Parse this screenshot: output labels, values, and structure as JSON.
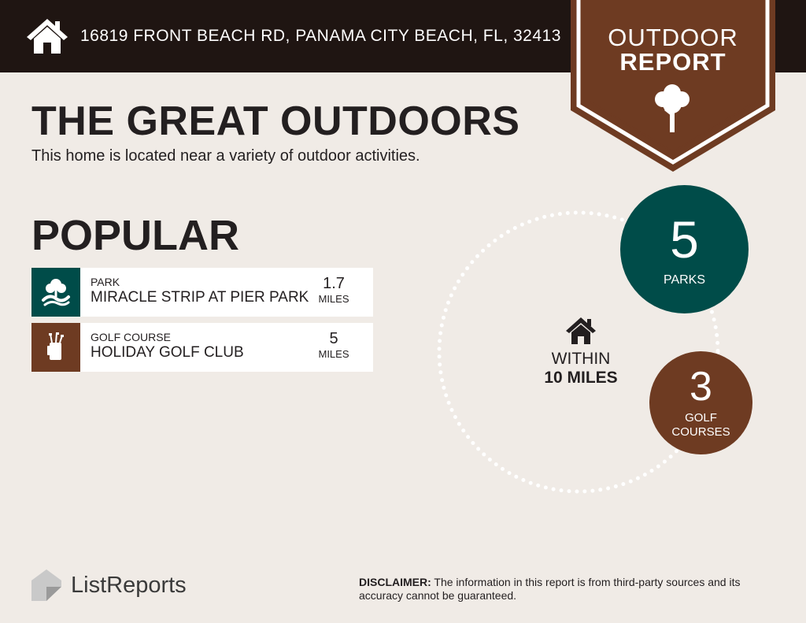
{
  "header": {
    "address": "16819 FRONT BEACH RD, PANAMA CITY BEACH, FL, 32413",
    "badge_line1": "OUTDOOR",
    "badge_line2": "REPORT"
  },
  "main": {
    "title": "THE GREAT OUTDOORS",
    "subtitle": "This home is located near a variety of outdoor activities."
  },
  "popular": {
    "title": "POPULAR",
    "items": [
      {
        "category": "PARK",
        "name": "MIRACLE STRIP AT PIER PARK",
        "distance": "1.7",
        "unit": "MILES",
        "icon": "park-icon"
      },
      {
        "category": "GOLF COURSE",
        "name": "HOLIDAY GOLF CLUB",
        "distance": "5",
        "unit": "MILES",
        "icon": "golf-bag-icon"
      }
    ]
  },
  "summary": {
    "within": "WITHIN",
    "radius": "10 MILES",
    "parks": {
      "count": "5",
      "label": "PARKS"
    },
    "golf": {
      "count": "3",
      "label": "GOLF\nCOURSES"
    }
  },
  "footer": {
    "logo": "ListReports",
    "disclaimer_label": "DISCLAIMER:",
    "disclaimer_text": "The information in this report is from third-party sources and its accuracy cannot be guaranteed."
  },
  "colors": {
    "header_bg": "#1f1512",
    "accent_brown": "#6e3b22",
    "accent_teal": "#004c49",
    "page_bg": "#f0ebe6"
  }
}
